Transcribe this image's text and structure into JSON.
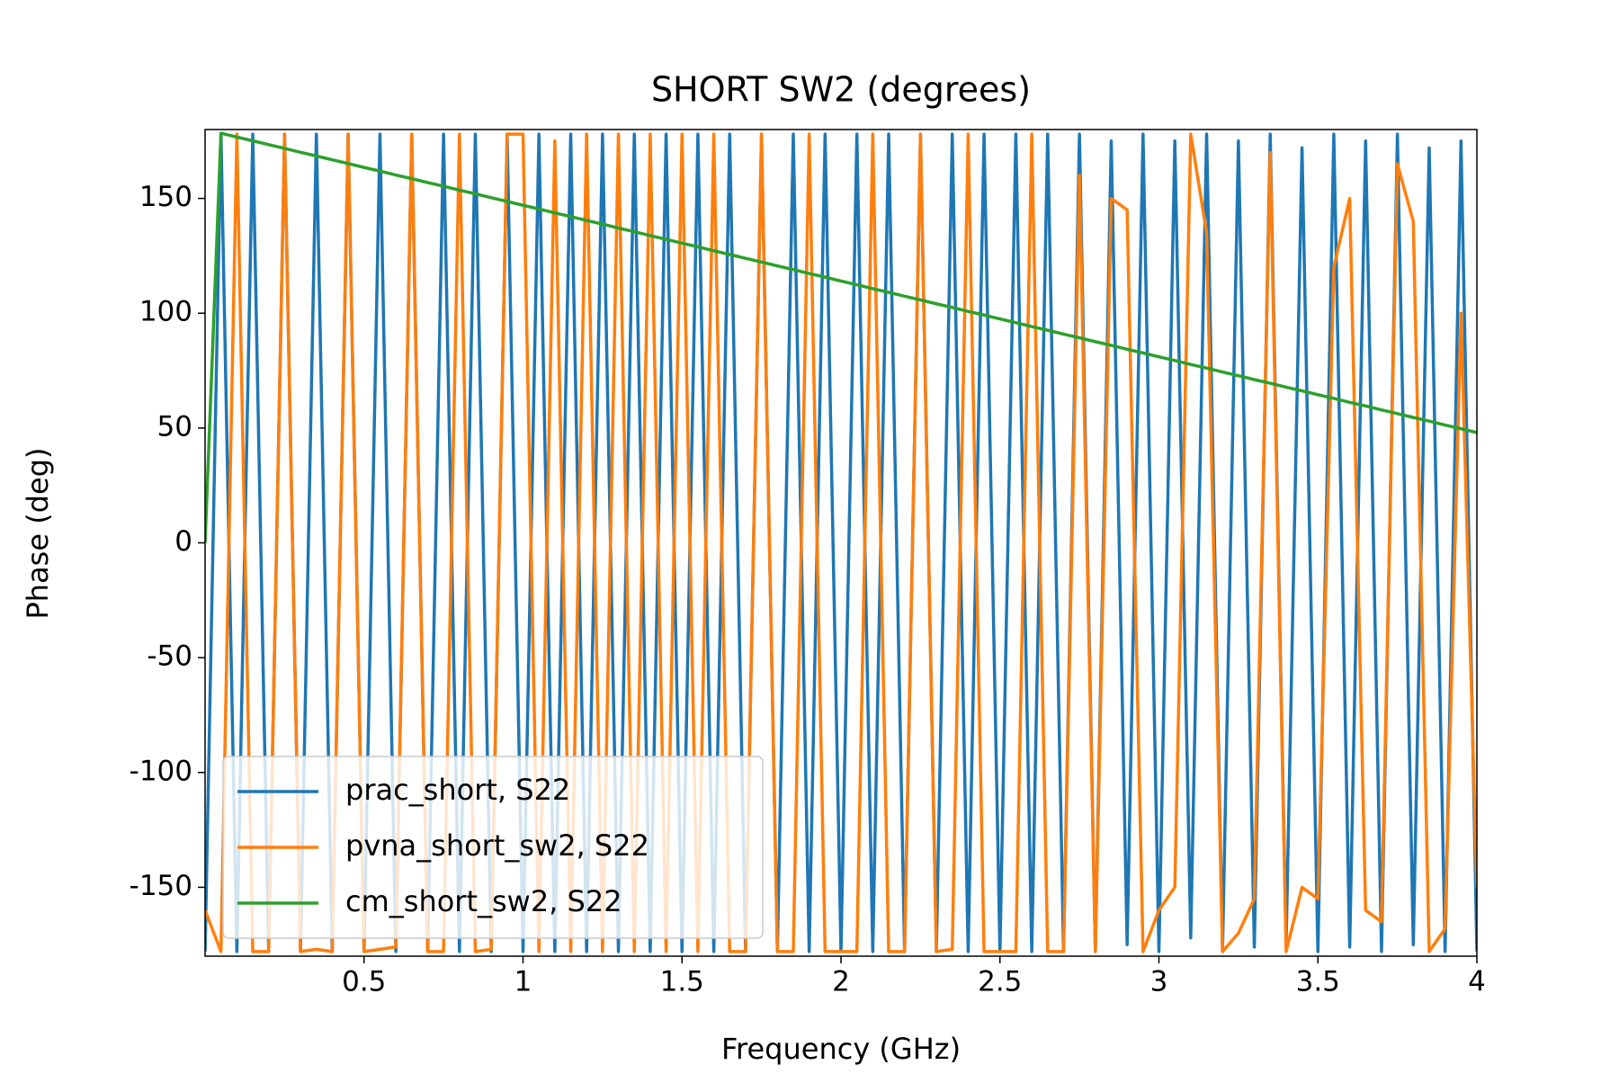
{
  "chart_data": {
    "type": "line",
    "title": "SHORT SW2 (degrees)",
    "x_label": "Frequency (GHz)",
    "y_label": "Phase (deg)",
    "x": [
      0,
      0.05,
      0.1,
      0.15,
      0.2,
      0.25,
      0.3,
      0.35,
      0.4,
      0.45,
      0.5,
      0.55,
      0.6,
      0.65,
      0.7,
      0.75,
      0.8,
      0.85,
      0.9,
      0.95,
      1,
      1.05,
      1.1,
      1.15,
      1.2,
      1.25,
      1.3,
      1.35,
      1.4,
      1.45,
      1.5,
      1.55,
      1.6,
      1.65,
      1.7,
      1.75,
      1.8,
      1.85,
      1.9,
      1.95,
      2,
      2.05,
      2.1,
      2.15,
      2.2,
      2.25,
      2.3,
      2.35,
      2.4,
      2.45,
      2.5,
      2.55,
      2.6,
      2.65,
      2.7,
      2.75,
      2.8,
      2.85,
      2.9,
      2.95,
      3,
      3.05,
      3.1,
      3.15,
      3.2,
      3.25,
      3.3,
      3.35,
      3.4,
      3.45,
      3.5,
      3.55,
      3.6,
      3.65,
      3.7,
      3.75,
      3.8,
      3.85,
      3.9,
      3.95,
      4
    ],
    "series": [
      {
        "name": "prac_short, S22",
        "color": "#1f77b4",
        "values": [
          -178,
          178,
          -178,
          178,
          -178,
          178,
          -178,
          178,
          -178,
          178,
          -178,
          178,
          -178,
          178,
          -178,
          178,
          -178,
          178,
          -178,
          178,
          -178,
          178,
          -178,
          178,
          -178,
          178,
          -178,
          178,
          -178,
          178,
          -178,
          178,
          -178,
          178,
          -178,
          178,
          -178,
          178,
          -178,
          178,
          -178,
          178,
          -178,
          178,
          -178,
          178,
          -178,
          178,
          -178,
          178,
          -178,
          178,
          -178,
          178,
          -178,
          178,
          -178,
          175,
          -175,
          178,
          -178,
          175,
          -172,
          178,
          -178,
          175,
          -176,
          178,
          -175,
          172,
          -178,
          178,
          -176,
          175,
          -178,
          178,
          -175,
          172,
          -178,
          175,
          -178
        ]
      },
      {
        "name": "pvna_short_sw2, S22",
        "color": "#ff7f0e",
        "values": [
          -160,
          -178,
          178,
          -178,
          -178,
          178,
          -178,
          -177,
          -178,
          178,
          -178,
          -177,
          -176,
          178,
          -178,
          -178,
          178,
          -178,
          -177,
          178,
          178,
          -178,
          175,
          -178,
          178,
          -178,
          178,
          -178,
          178,
          -178,
          178,
          -178,
          178,
          -178,
          -178,
          178,
          -178,
          -178,
          178,
          -178,
          -178,
          -178,
          178,
          -178,
          -178,
          178,
          -178,
          -177,
          178,
          -178,
          -178,
          -178,
          178,
          -178,
          -178,
          160,
          -178,
          150,
          145,
          -178,
          -160,
          -150,
          178,
          135,
          -178,
          -170,
          -155,
          170,
          -178,
          -150,
          -155,
          120,
          150,
          -160,
          -165,
          165,
          140,
          -178,
          -168,
          100,
          -150
        ]
      },
      {
        "name": "cm_short_sw2, S22",
        "color": "#2ca02c",
        "values": [
          0,
          178.4,
          176.7,
          175.1,
          173.4,
          171.8,
          170.1,
          168.5,
          166.8,
          165.2,
          163.5,
          161.9,
          160.2,
          158.6,
          156.9,
          155.3,
          153.6,
          152.0,
          150.3,
          148.7,
          147.0,
          145.4,
          143.7,
          142.1,
          140.4,
          138.8,
          137.1,
          135.5,
          133.8,
          132.2,
          130.5,
          128.9,
          127.2,
          125.6,
          123.9,
          122.3,
          120.6,
          119.0,
          117.3,
          115.7,
          114.0,
          112.4,
          110.7,
          109.1,
          107.4,
          105.8,
          104.1,
          102.5,
          100.8,
          99.2,
          97.5,
          95.9,
          94.2,
          92.6,
          90.9,
          89.3,
          87.6,
          86.0,
          84.3,
          82.7,
          81.0,
          79.4,
          77.7,
          76.1,
          74.4,
          72.8,
          71.1,
          69.5,
          67.8,
          66.2,
          64.5,
          62.9,
          61.2,
          59.6,
          57.9,
          56.3,
          54.6,
          53.0,
          51.3,
          49.7,
          48.0
        ]
      }
    ],
    "xlim": [
      0,
      4
    ],
    "xticks": [
      0.5,
      1,
      1.5,
      2,
      2.5,
      3,
      3.5,
      4
    ],
    "ylim": [
      -180,
      180
    ],
    "yticks": [
      -150,
      -100,
      -50,
      0,
      50,
      100,
      150
    ],
    "legend": "lower left"
  }
}
